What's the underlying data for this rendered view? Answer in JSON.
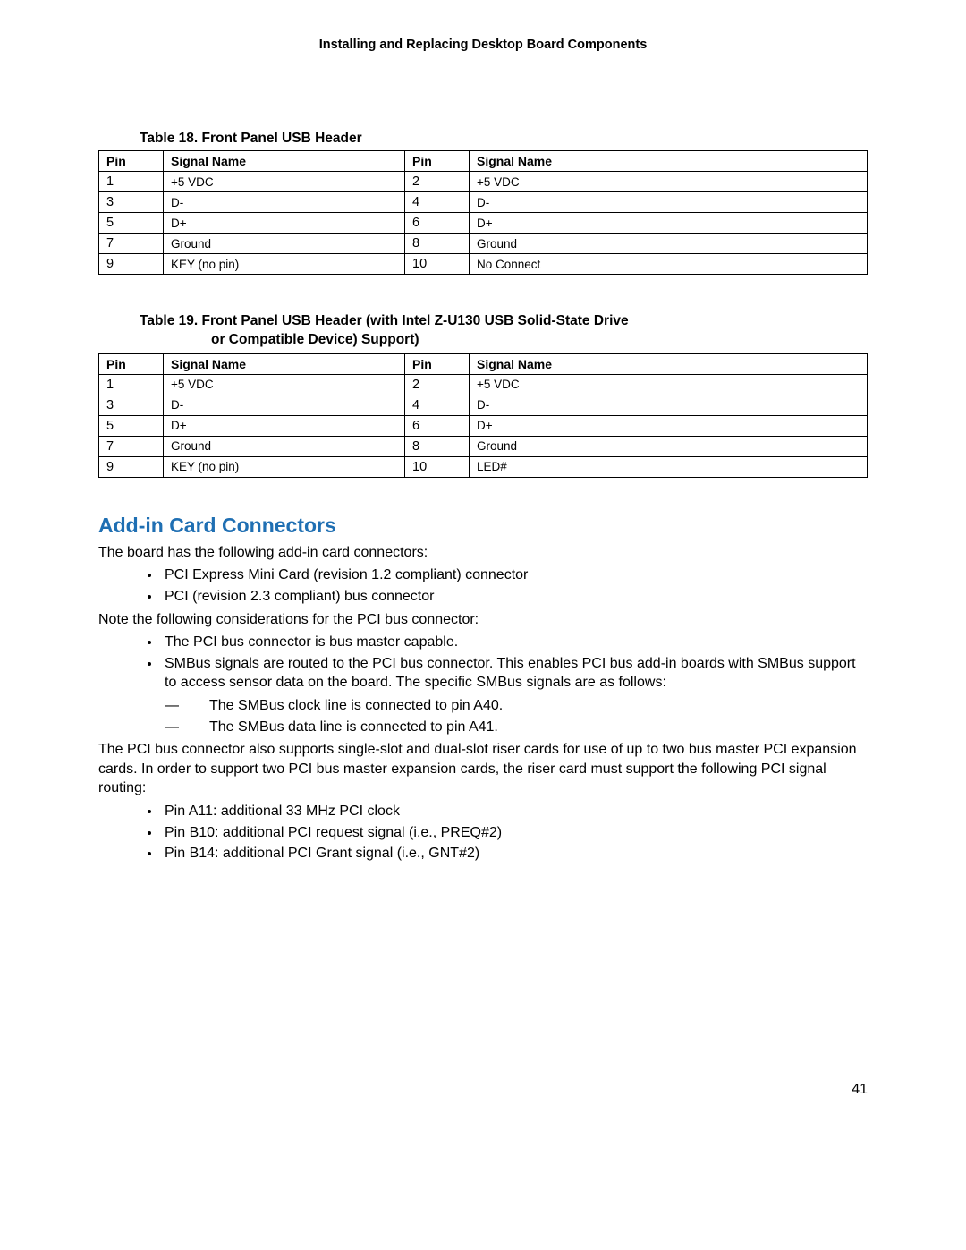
{
  "header": {
    "running_title": "Installing and Replacing Desktop Board Components"
  },
  "table18": {
    "caption": "Table 18. Front Panel USB Header",
    "columns": [
      "Pin",
      "Signal Name",
      "Pin",
      "Signal Name"
    ],
    "rows": [
      [
        "1",
        "+5 VDC",
        "2",
        "+5 VDC"
      ],
      [
        "3",
        "D-",
        "4",
        "D-"
      ],
      [
        "5",
        "D+",
        "6",
        "D+"
      ],
      [
        "7",
        "Ground",
        "8",
        "Ground"
      ],
      [
        "9",
        "KEY (no pin)",
        "10",
        "No Connect"
      ]
    ]
  },
  "table19": {
    "caption_line1": "Table 19.  Front Panel USB Header (with Intel Z-U130 USB Solid-State Drive",
    "caption_line2": "or Compatible Device) Support)",
    "columns": [
      "Pin",
      "Signal Name",
      "Pin",
      "Signal Name"
    ],
    "rows": [
      [
        "1",
        "+5 VDC",
        "2",
        "+5 VDC"
      ],
      [
        "3",
        "D-",
        "4",
        "D-"
      ],
      [
        "5",
        "D+",
        "6",
        "D+"
      ],
      [
        "7",
        "Ground",
        "8",
        "Ground"
      ],
      [
        "9",
        "KEY (no pin)",
        "10",
        "LED#"
      ]
    ]
  },
  "section": {
    "title": "Add-in Card Connectors",
    "intro": "The board has the following add-in card connectors:",
    "connectors": [
      "PCI Express Mini Card (revision 1.2 compliant) connector",
      "PCI (revision 2.3 compliant) bus connector"
    ],
    "note_intro": "Note the following considerations for the PCI bus connector:",
    "considerations": [
      "The PCI bus connector is bus master capable.",
      "SMBus signals are routed to the PCI bus connector.  This enables PCI bus add-in boards with SMBus support to access sensor data on the board.  The specific SMBus signals are as follows:"
    ],
    "smbus_subs": [
      "The SMBus clock line is connected to pin A40.",
      "The SMBus data line is connected to pin A41."
    ],
    "riser_para": "The PCI bus connector also supports single-slot and dual-slot riser cards for use of up to two bus master PCI expansion cards.  In order to support two PCI bus master expansion cards, the riser card must support the following PCI signal routing:",
    "routing": [
      "Pin A11: additional 33 MHz PCI clock",
      "Pin B10: additional PCI request signal (i.e., PREQ#2)",
      "Pin B14: additional PCI Grant signal (i.e., GNT#2)"
    ]
  },
  "page_number": "41",
  "style": {
    "heading_color": "#1f6fb3",
    "text_color": "#000000",
    "border_color": "#000000",
    "background": "#ffffff"
  }
}
